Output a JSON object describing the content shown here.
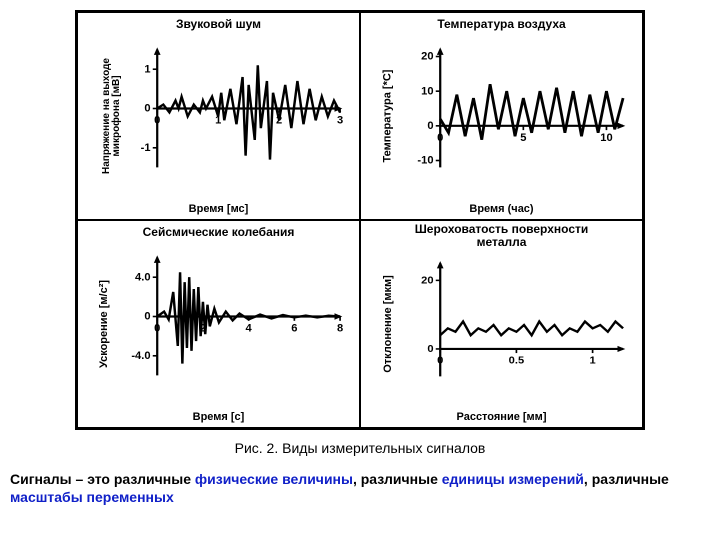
{
  "caption": "Рис. 2. Виды измерительных сигналов",
  "description_prefix": "Сигналы – это различные ",
  "term1": "физические величины",
  "mid1": ", различные ",
  "term2": "единицы измерений",
  "mid2": ", различные ",
  "term3": "масштабы переменных",
  "panels": {
    "sound": {
      "title": "Звуковой шум",
      "ylabel_line1": "Напряжение на выходе",
      "ylabel_line2": "микрофона [мВ]",
      "xlabel": "Время [мс]",
      "xticks": [
        "0",
        "1",
        "2",
        "3"
      ],
      "yticks": [
        "-1",
        "0",
        "1"
      ],
      "xlim": [
        0,
        3
      ],
      "ylim": [
        -1.5,
        1.5
      ],
      "line_color": "#000",
      "line_width": 2.2,
      "data_x": [
        0,
        0.1,
        0.2,
        0.3,
        0.35,
        0.4,
        0.5,
        0.6,
        0.7,
        0.75,
        0.8,
        0.9,
        1.0,
        1.05,
        1.1,
        1.2,
        1.3,
        1.4,
        1.45,
        1.5,
        1.6,
        1.65,
        1.7,
        1.8,
        1.85,
        1.9,
        2.0,
        2.1,
        2.2,
        2.3,
        2.4,
        2.5,
        2.6,
        2.7,
        2.8,
        2.9,
        3.0
      ],
      "data_y": [
        0,
        0.1,
        -0.1,
        0.2,
        0,
        0.3,
        -0.2,
        0.1,
        -0.1,
        0.2,
        0,
        0.3,
        -0.2,
        0.4,
        -0.3,
        0.5,
        -0.4,
        0.8,
        -1.2,
        0.6,
        -0.8,
        1.1,
        -0.5,
        0.7,
        -1.3,
        0.4,
        -0.3,
        0.6,
        -0.5,
        0.7,
        -0.4,
        0.5,
        -0.3,
        0.3,
        -0.2,
        0.2,
        -0.1
      ]
    },
    "temp": {
      "title": "Температура воздуха",
      "ylabel": "Температура [*С]",
      "xlabel": "Время (час)",
      "xticks": [
        "0",
        "5",
        "10"
      ],
      "yticks": [
        "-10",
        "0",
        "10",
        "20"
      ],
      "xlim": [
        0,
        11
      ],
      "ylim": [
        -12,
        22
      ],
      "line_color": "#000",
      "line_width": 2.5,
      "data_x": [
        0,
        0.5,
        1,
        1.5,
        2,
        2.5,
        3,
        3.5,
        4,
        4.5,
        5,
        5.5,
        6,
        6.5,
        7,
        7.5,
        8,
        8.5,
        9,
        9.5,
        10,
        10.5,
        11
      ],
      "data_y": [
        2,
        -2,
        9,
        -3,
        8,
        -4,
        12,
        -1,
        10,
        -3,
        8,
        -2,
        10,
        -1,
        11,
        -2,
        10,
        -3,
        9,
        -2,
        10,
        -1,
        8
      ]
    },
    "seismic": {
      "title": "Сейсмические колебания",
      "ylabel": "Ускорение [м/с²]",
      "xlabel": "Время [с]",
      "xticks": [
        "0",
        "2",
        "4",
        "6",
        "8"
      ],
      "yticks": [
        "-4.0",
        "0",
        "4.0"
      ],
      "xlim": [
        0,
        8
      ],
      "ylim": [
        -6,
        6
      ],
      "line_color": "#000",
      "line_width": 2.2,
      "data_x": [
        0,
        0.3,
        0.5,
        0.7,
        0.9,
        1.0,
        1.1,
        1.2,
        1.3,
        1.4,
        1.5,
        1.6,
        1.7,
        1.8,
        1.9,
        2.0,
        2.1,
        2.2,
        2.3,
        2.5,
        2.7,
        3.0,
        3.3,
        3.6,
        4.0,
        4.5,
        5.0,
        5.5,
        6.0,
        6.5,
        7.0,
        7.5,
        8.0
      ],
      "data_y": [
        0,
        0.5,
        -0.3,
        2.5,
        -3.0,
        4.5,
        -4.8,
        3.5,
        -3.2,
        4.0,
        -3.5,
        2.8,
        -2.5,
        3.0,
        -2.0,
        1.5,
        -1.8,
        1.2,
        -1.0,
        0.8,
        -0.6,
        0.5,
        -0.4,
        0.3,
        -0.3,
        0.2,
        -0.2,
        0.15,
        -0.1,
        0.1,
        -0.1,
        0.08,
        0
      ]
    },
    "surface": {
      "title_line1": "Шероховатость поверхности",
      "title_line2": "металла",
      "ylabel": "Отклонение [мкм]",
      "xlabel": "Расстояние [мм]",
      "xticks": [
        "0",
        "0.5",
        "1"
      ],
      "yticks": [
        "0",
        "20"
      ],
      "xlim": [
        0,
        1.2
      ],
      "ylim": [
        -8,
        25
      ],
      "line_color": "#000",
      "line_width": 2.2,
      "data_x": [
        0,
        0.05,
        0.1,
        0.15,
        0.2,
        0.25,
        0.3,
        0.35,
        0.4,
        0.45,
        0.5,
        0.55,
        0.6,
        0.65,
        0.7,
        0.75,
        0.8,
        0.85,
        0.9,
        0.95,
        1.0,
        1.05,
        1.1,
        1.15,
        1.2
      ],
      "data_y": [
        4,
        6,
        5,
        8,
        4,
        6,
        5,
        7,
        4,
        6,
        5,
        7,
        4,
        8,
        5,
        7,
        4,
        6,
        5,
        8,
        6,
        7,
        5,
        8,
        6
      ]
    }
  }
}
